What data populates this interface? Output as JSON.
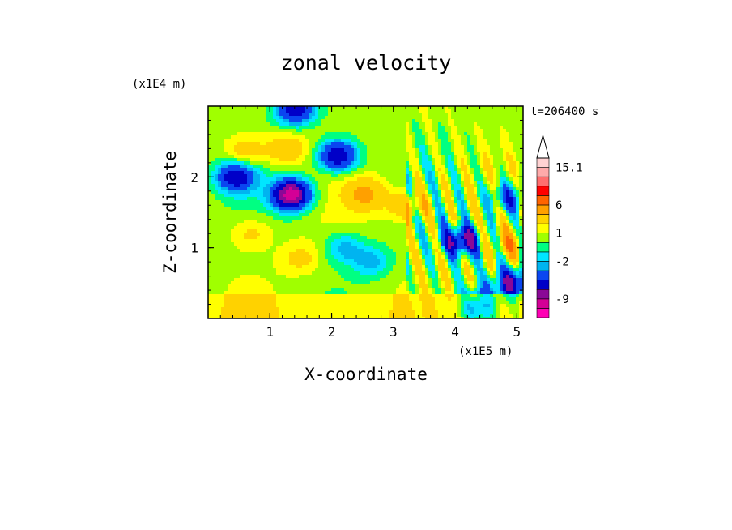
{
  "chart_data": {
    "type": "heatmap",
    "title": "zonal velocity",
    "xlabel": "X-coordinate",
    "ylabel": "Z-coordinate",
    "x_scale_label": "(x1E5 m)",
    "y_scale_label": "(x1E4 m)",
    "time_label": "t=206400 s",
    "xlim": [
      0,
      5.1
    ],
    "ylim": [
      0,
      3.0
    ],
    "x_ticks": [
      1,
      2,
      3,
      4,
      5
    ],
    "y_ticks": [
      1,
      2
    ],
    "x_tick_labels": [
      "1",
      "2",
      "3",
      "4",
      "5"
    ],
    "y_tick_labels": [
      "1",
      "2"
    ],
    "colorbar": {
      "levels": [
        -13,
        -11,
        -9,
        -7,
        -5,
        -3,
        -2,
        -1,
        0,
        1,
        2,
        4,
        6,
        8,
        10,
        12,
        15.1
      ],
      "colors": [
        "#ff00b4",
        "#d40096",
        "#8a0896",
        "#0000c8",
        "#0a46f0",
        "#00b4f0",
        "#00e6ff",
        "#00ff82",
        "#a0ff00",
        "#ffff00",
        "#ffd200",
        "#ffa000",
        "#ff6400",
        "#ff0000",
        "#ff6e6e",
        "#ffaaaa",
        "#ffd2d2"
      ],
      "labeled_ticks": [
        {
          "value": 15.1,
          "label": "15.1"
        },
        {
          "value": 6,
          "label": "6"
        },
        {
          "value": 1,
          "label": "1"
        },
        {
          "value": -2,
          "label": "-2"
        },
        {
          "value": -9,
          "label": "-9"
        }
      ]
    },
    "field_features": [
      {
        "x": 1.35,
        "z": 1.75,
        "u": -11,
        "kind": "min"
      },
      {
        "x": 0.45,
        "z": 2.0,
        "u": -7,
        "kind": "min"
      },
      {
        "x": 2.1,
        "z": 2.3,
        "u": -8,
        "kind": "min"
      },
      {
        "x": 1.4,
        "z": 2.95,
        "u": -7,
        "kind": "min"
      },
      {
        "x": 2.55,
        "z": 1.75,
        "u": 4,
        "kind": "max"
      },
      {
        "x": 3.25,
        "z": 1.6,
        "u": 4,
        "kind": "max"
      },
      {
        "x": 1.25,
        "z": 2.4,
        "u": 3,
        "kind": "max"
      },
      {
        "x": 0.6,
        "z": 2.35,
        "u": 3,
        "kind": "max"
      },
      {
        "x": 2.65,
        "z": 0.8,
        "u": -3,
        "kind": "min"
      },
      {
        "x": 2.2,
        "z": 1.0,
        "u": -3,
        "kind": "min"
      },
      {
        "x": 1.5,
        "z": 0.85,
        "u": 2,
        "kind": "max"
      },
      {
        "x": 0.7,
        "z": 1.2,
        "u": 2,
        "kind": "max"
      },
      {
        "x": 4.1,
        "z": 1.1,
        "u": -8,
        "kind": "min"
      },
      {
        "x": 4.35,
        "z": 0.15,
        "u": -8,
        "kind": "min"
      },
      {
        "x": 4.95,
        "z": 0.5,
        "u": -7,
        "kind": "min"
      },
      {
        "x": 4.9,
        "z": 1.05,
        "u": 3,
        "kind": "max"
      },
      {
        "x": 4.85,
        "z": 1.7,
        "u": -5,
        "kind": "min"
      }
    ]
  }
}
